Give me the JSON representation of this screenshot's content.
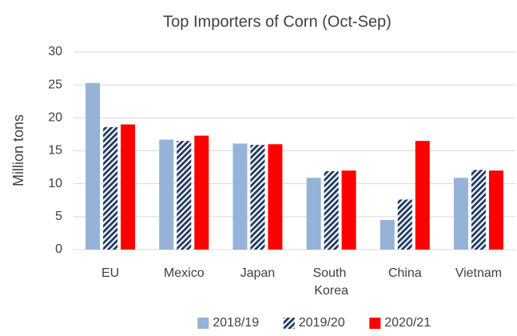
{
  "chart_data": {
    "type": "bar",
    "title": "Top Importers of Corn (Oct-Sep)",
    "y_label": "Million tons",
    "categories": [
      "EU",
      "Mexico",
      "Japan",
      "South Korea",
      "China",
      "Vietnam"
    ],
    "series": [
      {
        "name": "2018/19",
        "color": "#95b3d7",
        "values": [
          25.3,
          16.7,
          16.1,
          10.9,
          4.5,
          10.9
        ]
      },
      {
        "name": "2019/20",
        "color": "#1f3864",
        "pattern": "hatch",
        "values": [
          18.6,
          16.5,
          15.9,
          11.9,
          7.6,
          12.1
        ]
      },
      {
        "name": "2020/21",
        "color": "#ff0000",
        "values": [
          19,
          17.3,
          16,
          12,
          16.5,
          12
        ]
      }
    ],
    "ylim": [
      0,
      30
    ],
    "yticks": [
      0,
      5,
      10,
      15,
      20,
      25,
      30
    ],
    "grid": true,
    "legend": "bottom"
  }
}
